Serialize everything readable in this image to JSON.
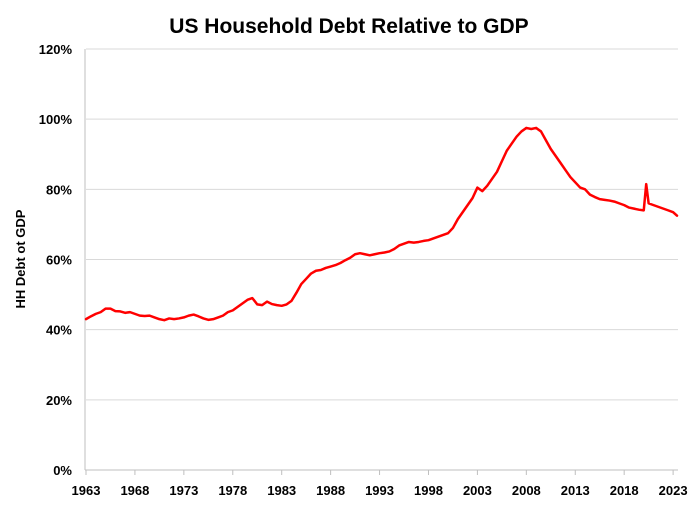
{
  "chart_data": {
    "type": "line",
    "title": "US Household Debt Relative to GDP",
    "xlabel": "",
    "ylabel": "HH Debt ot GDP",
    "xlim": [
      1963,
      2023.5
    ],
    "ylim": [
      0,
      120
    ],
    "x_ticks": [
      1963,
      1968,
      1973,
      1978,
      1983,
      1988,
      1993,
      1998,
      2003,
      2008,
      2013,
      2018,
      2023
    ],
    "x_tick_labels": [
      "1963",
      "1968",
      "1973",
      "1978",
      "1983",
      "1988",
      "1993",
      "1998",
      "2003",
      "2008",
      "2013",
      "2018",
      "2023"
    ],
    "y_ticks": [
      0,
      20,
      40,
      60,
      80,
      100,
      120
    ],
    "y_tick_labels": [
      "0%",
      "20%",
      "40%",
      "60%",
      "80%",
      "100%",
      "120%"
    ],
    "grid": true,
    "legend": "none",
    "color": "#ff0000",
    "series": [
      {
        "x": [
          1963.0,
          1963.5,
          1964.0,
          1964.5,
          1965.0,
          1965.5,
          1966.0,
          1966.5,
          1967.0,
          1967.5,
          1968.0,
          1968.5,
          1969.0,
          1969.5,
          1970.0,
          1970.5,
          1971.0,
          1971.5,
          1972.0,
          1972.5,
          1973.0,
          1973.5,
          1974.0,
          1974.5,
          1975.0,
          1975.5,
          1976.0,
          1976.5,
          1977.0,
          1977.5,
          1978.0,
          1978.5,
          1979.0,
          1979.5,
          1980.0,
          1980.5,
          1981.0,
          1981.5,
          1982.0,
          1982.5,
          1983.0,
          1983.5,
          1984.0,
          1984.5,
          1985.0,
          1985.5,
          1986.0,
          1986.5,
          1987.0,
          1987.5,
          1988.0,
          1988.5,
          1989.0,
          1989.5,
          1990.0,
          1990.5,
          1991.0,
          1991.5,
          1992.0,
          1992.5,
          1993.0,
          1993.5,
          1994.0,
          1994.5,
          1995.0,
          1995.5,
          1996.0,
          1996.5,
          1997.0,
          1997.5,
          1998.0,
          1998.5,
          1999.0,
          1999.5,
          2000.0,
          2000.5,
          2001.0,
          2001.5,
          2002.0,
          2002.5,
          2003.0,
          2003.5,
          2004.0,
          2004.5,
          2005.0,
          2005.5,
          2006.0,
          2006.5,
          2007.0,
          2007.5,
          2008.0,
          2008.5,
          2009.0,
          2009.5,
          2010.0,
          2010.5,
          2011.0,
          2011.5,
          2012.0,
          2012.5,
          2013.0,
          2013.5,
          2014.0,
          2014.5,
          2015.0,
          2015.5,
          2016.0,
          2016.5,
          2017.0,
          2017.5,
          2018.0,
          2018.5,
          2019.0,
          2019.5,
          2020.0,
          2020.25,
          2020.5,
          2021.0,
          2021.5,
          2022.0,
          2022.5,
          2023.0,
          2023.4
        ],
        "y": [
          43.0,
          43.8,
          44.5,
          45.0,
          46.0,
          46.0,
          45.3,
          45.2,
          44.8,
          45.0,
          44.5,
          44.0,
          43.9,
          44.0,
          43.5,
          43.0,
          42.7,
          43.2,
          43.0,
          43.2,
          43.5,
          44.0,
          44.3,
          43.8,
          43.2,
          42.8,
          43.0,
          43.5,
          44.0,
          45.0,
          45.5,
          46.5,
          47.5,
          48.5,
          49.0,
          47.2,
          47.0,
          48.0,
          47.3,
          47.0,
          46.8,
          47.2,
          48.2,
          50.5,
          53.0,
          54.5,
          56.0,
          56.8,
          57.0,
          57.6,
          58.0,
          58.4,
          59.0,
          59.8,
          60.5,
          61.5,
          61.8,
          61.5,
          61.2,
          61.5,
          61.8,
          62.0,
          62.3,
          63.0,
          64.0,
          64.5,
          65.0,
          64.8,
          65.0,
          65.3,
          65.5,
          66.0,
          66.5,
          67.0,
          67.5,
          69.0,
          71.5,
          73.5,
          75.5,
          77.5,
          80.5,
          79.5,
          81.0,
          83.0,
          85.0,
          88.0,
          91.0,
          93.0,
          95.0,
          96.5,
          97.5,
          97.2,
          97.5,
          96.5,
          94.0,
          91.5,
          89.5,
          87.5,
          85.5,
          83.5,
          82.0,
          80.5,
          80.0,
          78.5,
          77.8,
          77.2,
          77.0,
          76.8,
          76.5,
          76.0,
          75.5,
          74.8,
          74.5,
          74.2,
          74.0,
          81.5,
          76.0,
          75.5,
          75.0,
          74.5,
          74.0,
          73.5,
          72.5
        ]
      }
    ]
  }
}
